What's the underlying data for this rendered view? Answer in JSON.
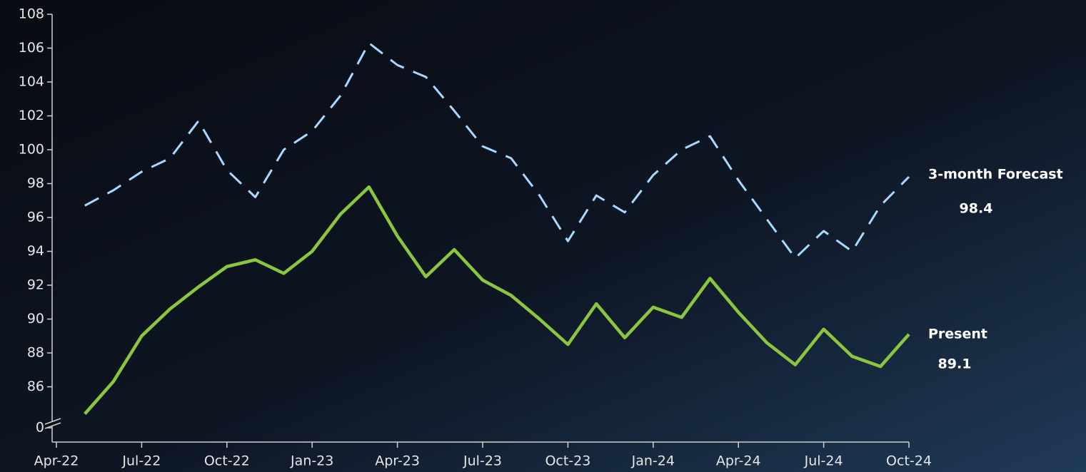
{
  "chart_data": {
    "type": "line",
    "categories": [
      "Apr-22",
      null,
      null,
      "Jul-22",
      null,
      null,
      "Oct-22",
      null,
      null,
      "Jan-23",
      null,
      null,
      "Apr-23",
      null,
      null,
      "Jul-23",
      null,
      null,
      "Oct-23",
      null,
      null,
      "Jan-24",
      null,
      null,
      "Apr-24",
      null,
      null,
      "Jul-24",
      null,
      null,
      "Oct-24"
    ],
    "series": [
      {
        "name": "3-month Forecast",
        "color": "#a9d9fb",
        "dashed": true,
        "values": [
          null,
          96.7,
          97.6,
          98.7,
          99.5,
          101.7,
          98.8,
          97.2,
          100.0,
          101.1,
          103.2,
          106.3,
          105.0,
          104.3,
          102.3,
          100.2,
          99.5,
          97.3,
          94.6,
          97.3,
          96.3,
          98.5,
          100.0,
          100.8,
          98.2,
          95.9,
          93.6,
          95.2,
          94.0,
          96.7,
          98.4
        ]
      },
      {
        "name": "Present",
        "color": "#8cc63f",
        "dashed": false,
        "values": [
          null,
          84.4,
          86.3,
          89.0,
          90.6,
          91.9,
          93.1,
          93.5,
          92.7,
          94.0,
          96.2,
          97.8,
          94.9,
          92.5,
          94.1,
          92.3,
          91.4,
          90.0,
          88.5,
          90.9,
          88.9,
          90.7,
          90.1,
          92.4,
          90.4,
          88.6,
          87.3,
          89.4,
          87.8,
          87.2,
          89.1
        ]
      }
    ],
    "ylim": [
      0,
      108
    ],
    "yticks": [
      0,
      86,
      88,
      90,
      92,
      94,
      96,
      98,
      100,
      102,
      104,
      106,
      108
    ],
    "y_axis_break": true
  }
}
